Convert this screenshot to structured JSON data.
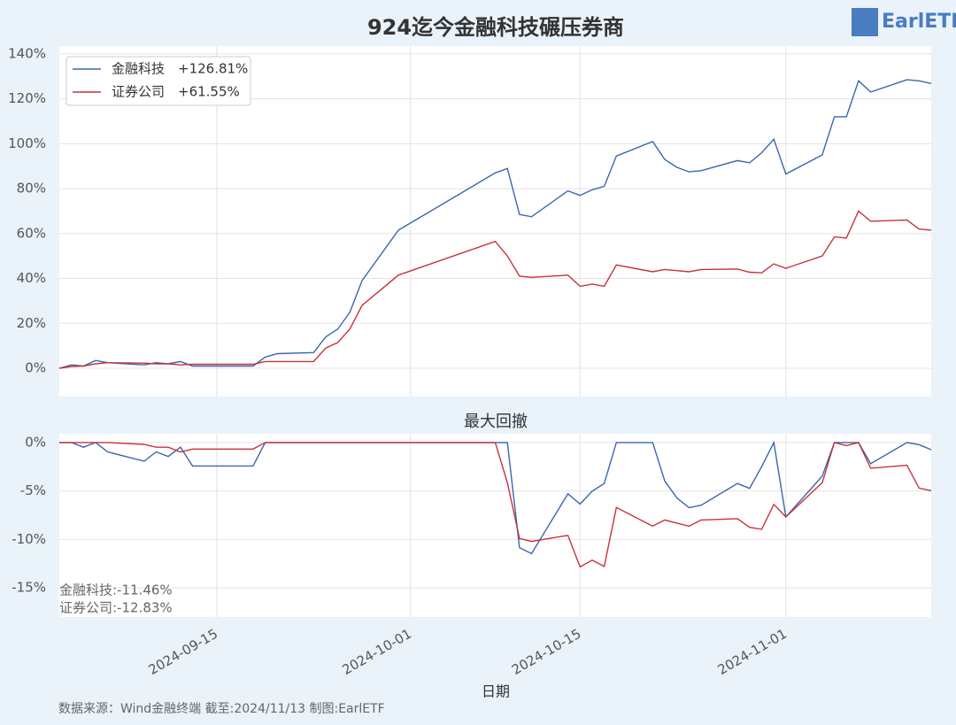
{
  "logo": "EarlETF",
  "source": "数据来源：Wind金融终端 截至:2024/11/13 制图:EarlETF",
  "chart_data": [
    {
      "type": "line",
      "title": "924迄今金融科技碾压券商",
      "x": [
        "2024-09-02",
        "2024-09-03",
        "2024-09-04",
        "2024-09-05",
        "2024-09-06",
        "2024-09-09",
        "2024-09-10",
        "2024-09-11",
        "2024-09-12",
        "2024-09-13",
        "2024-09-18",
        "2024-09-19",
        "2024-09-20",
        "2024-09-23",
        "2024-09-24",
        "2024-09-25",
        "2024-09-26",
        "2024-09-27",
        "2024-09-30",
        "2024-10-08",
        "2024-10-09",
        "2024-10-10",
        "2024-10-11",
        "2024-10-14",
        "2024-10-15",
        "2024-10-16",
        "2024-10-17",
        "2024-10-18",
        "2024-10-21",
        "2024-10-22",
        "2024-10-23",
        "2024-10-24",
        "2024-10-25",
        "2024-10-28",
        "2024-10-29",
        "2024-10-30",
        "2024-10-31",
        "2024-11-01",
        "2024-11-04",
        "2024-11-05",
        "2024-11-06",
        "2024-11-07",
        "2024-11-08",
        "2024-11-11",
        "2024-11-12",
        "2024-11-13"
      ],
      "series": [
        {
          "name": "金融科技",
          "legend_value": "+126.81%",
          "color": "#3a66ad",
          "values": [
            0,
            1.5,
            1,
            3.5,
            2.5,
            1.5,
            2.5,
            2,
            3,
            1,
            1,
            5,
            6.5,
            7,
            14,
            17.5,
            25,
            39,
            61.5,
            87,
            89,
            68.5,
            67.5,
            79,
            77,
            79.5,
            81,
            94.5,
            101,
            93,
            89.5,
            87.5,
            88,
            92.5,
            91.5,
            96,
            102,
            86.5,
            95,
            112,
            112,
            128,
            123,
            128.5,
            128,
            126.81
          ]
        },
        {
          "name": "证券公司",
          "legend_value": "+61.55%",
          "color": "#c8323c",
          "values": [
            0,
            0.8,
            1,
            2,
            2.5,
            2.3,
            2,
            2,
            1.5,
            1.8,
            1.8,
            3,
            3,
            3,
            9,
            11.5,
            17.5,
            28,
            41.5,
            56.5,
            50,
            41,
            40.5,
            41.5,
            36.5,
            37.5,
            36.5,
            46,
            43,
            44,
            43.5,
            43,
            44,
            44.2,
            42.8,
            42.5,
            46.5,
            44.5,
            50,
            58.5,
            58,
            70,
            65.5,
            66,
            62,
            61.55
          ]
        }
      ],
      "xlim": [
        "2024-09-02",
        "2024-11-13"
      ],
      "xticks": [
        "2024-09-15",
        "2024-10-01",
        "2024-10-15",
        "2024-11-01"
      ],
      "ylim": [
        -12.6,
        143.5
      ],
      "yticks": [
        {
          "value": 0,
          "label": "0%"
        },
        {
          "value": 20,
          "label": "20%"
        },
        {
          "value": 40,
          "label": "40%"
        },
        {
          "value": 60,
          "label": "60%"
        },
        {
          "value": 80,
          "label": "80%"
        },
        {
          "value": 100,
          "label": "100%"
        },
        {
          "value": 120,
          "label": "120%"
        },
        {
          "value": 140,
          "label": "140%"
        }
      ],
      "grid": true,
      "legend": "upper left"
    },
    {
      "type": "line",
      "title": "最大回撤",
      "x_label": "日期",
      "x": [
        "2024-09-02",
        "2024-09-03",
        "2024-09-04",
        "2024-09-05",
        "2024-09-06",
        "2024-09-09",
        "2024-09-10",
        "2024-09-11",
        "2024-09-12",
        "2024-09-13",
        "2024-09-18",
        "2024-09-19",
        "2024-09-20",
        "2024-09-23",
        "2024-09-24",
        "2024-09-25",
        "2024-09-26",
        "2024-09-27",
        "2024-09-30",
        "2024-10-08",
        "2024-10-09",
        "2024-10-10",
        "2024-10-11",
        "2024-10-14",
        "2024-10-15",
        "2024-10-16",
        "2024-10-17",
        "2024-10-18",
        "2024-10-21",
        "2024-10-22",
        "2024-10-23",
        "2024-10-24",
        "2024-10-25",
        "2024-10-28",
        "2024-10-29",
        "2024-10-30",
        "2024-10-31",
        "2024-11-01",
        "2024-11-04",
        "2024-11-05",
        "2024-11-06",
        "2024-11-07",
        "2024-11-08",
        "2024-11-11",
        "2024-11-12",
        "2024-11-13"
      ],
      "series": [
        {
          "name": "金融科技",
          "color": "#3a66ad",
          "values": [
            0,
            0,
            -0.49,
            0,
            -0.97,
            -1.93,
            -0.97,
            -1.45,
            -0.48,
            -2.42,
            -2.42,
            0,
            0,
            0,
            0,
            0,
            0,
            0,
            0,
            0,
            0,
            -10.85,
            -11.46,
            -5.29,
            -6.35,
            -5.03,
            -4.23,
            0,
            0,
            -3.98,
            -5.72,
            -6.72,
            -6.47,
            -4.23,
            -4.73,
            -2.49,
            0,
            -7.67,
            -3.47,
            0,
            0,
            0,
            -2.19,
            0,
            -0.22,
            -0.74
          ]
        },
        {
          "name": "证券公司",
          "color": "#c8323c",
          "values": [
            0,
            0,
            0,
            0,
            0,
            -0.2,
            -0.49,
            -0.49,
            -0.98,
            -0.68,
            -0.68,
            0,
            0,
            0,
            0,
            0,
            0,
            0,
            0,
            0,
            -4.15,
            -9.9,
            -10.2,
            -9.58,
            -12.83,
            -12.14,
            -12.78,
            -6.71,
            -8.63,
            -7.99,
            -8.31,
            -8.63,
            -7.99,
            -7.86,
            -8.75,
            -8.95,
            -6.39,
            -7.67,
            -4.15,
            0,
            -0.32,
            0,
            -2.65,
            -2.35,
            -4.71,
            -4.97
          ]
        }
      ],
      "annotations": [
        "金融科技:-11.46%",
        "证券公司:-12.83%"
      ],
      "xlim": [
        "2024-09-02",
        "2024-11-13"
      ],
      "xticks": [
        "2024-09-15",
        "2024-10-01",
        "2024-10-15",
        "2024-11-01"
      ],
      "ylim": [
        -18,
        0.9
      ],
      "yticks": [
        {
          "value": 0,
          "label": "0%"
        },
        {
          "value": -5,
          "label": "-5%"
        },
        {
          "value": -10,
          "label": "-10%"
        },
        {
          "value": -15,
          "label": "-15%"
        }
      ],
      "grid": true
    }
  ]
}
